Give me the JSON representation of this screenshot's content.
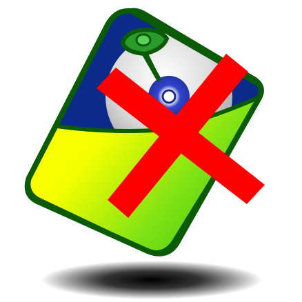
{
  "icon": {
    "name": "cd-case-delete-icon",
    "colors": {
      "case_outline": "#0b5a06",
      "case_top": "#0c2a8a",
      "case_gradient_start": "#ffff00",
      "case_gradient_end": "#2cc40c",
      "disc_light": "#f4f4f4",
      "disc_dark": "#9a9a9a",
      "disc_hub": "#3344cc",
      "clasp": "#2a9a2a",
      "cross": "#ff0000",
      "shadow": "#000000"
    }
  }
}
